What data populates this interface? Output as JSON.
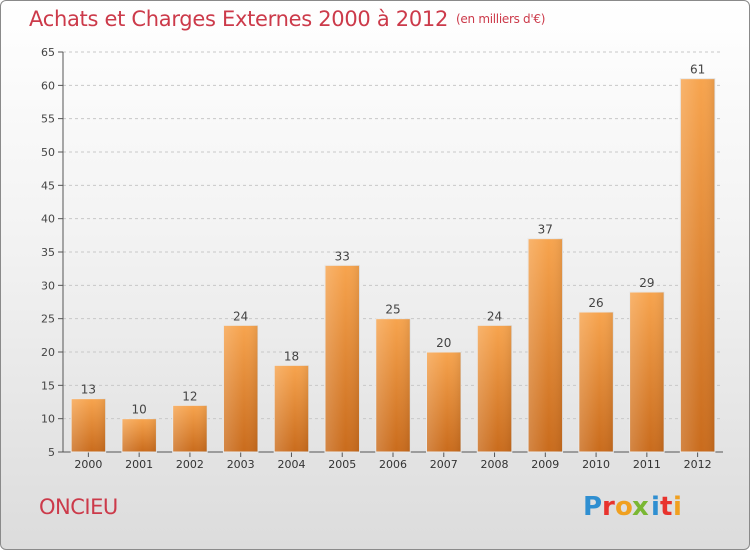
{
  "header": {
    "title": "Achats et Charges Externes 2000 à 2012",
    "subtitle": "(en milliers d'€)"
  },
  "footer": {
    "commune": "ONCIEU",
    "brand": "Proxiti",
    "brand_letters": [
      {
        "ch": "P",
        "color": "#2f8fd1"
      },
      {
        "ch": "r",
        "color": "#e8332d"
      },
      {
        "ch": "o",
        "color": "#f0a020"
      },
      {
        "ch": "x",
        "color": "#7ab733"
      },
      {
        "ch": "i",
        "color": "#2f8fd1"
      },
      {
        "ch": "t",
        "color": "#e8332d"
      },
      {
        "ch": "i",
        "color": "#f0a020"
      }
    ]
  },
  "colors": {
    "bar_light": "#f7a44e",
    "bar_dark": "#c96b1c",
    "title": "#cc3a4a",
    "grid": "#c8c8c8"
  },
  "chart_data": {
    "type": "bar",
    "title": "Achats et Charges Externes 2000 à 2012",
    "subtitle": "(en milliers d'€)",
    "categories": [
      "2000",
      "2001",
      "2002",
      "2003",
      "2004",
      "2005",
      "2006",
      "2007",
      "2008",
      "2009",
      "2010",
      "2011",
      "2012"
    ],
    "values": [
      13,
      10,
      12,
      24,
      18,
      33,
      25,
      20,
      24,
      37,
      26,
      29,
      61
    ],
    "ylim": [
      5,
      65
    ],
    "yticks": [
      5,
      10,
      15,
      20,
      25,
      30,
      35,
      40,
      45,
      50,
      55,
      60,
      65
    ],
    "grid": "horizontal-dashed",
    "data_labels": true
  }
}
